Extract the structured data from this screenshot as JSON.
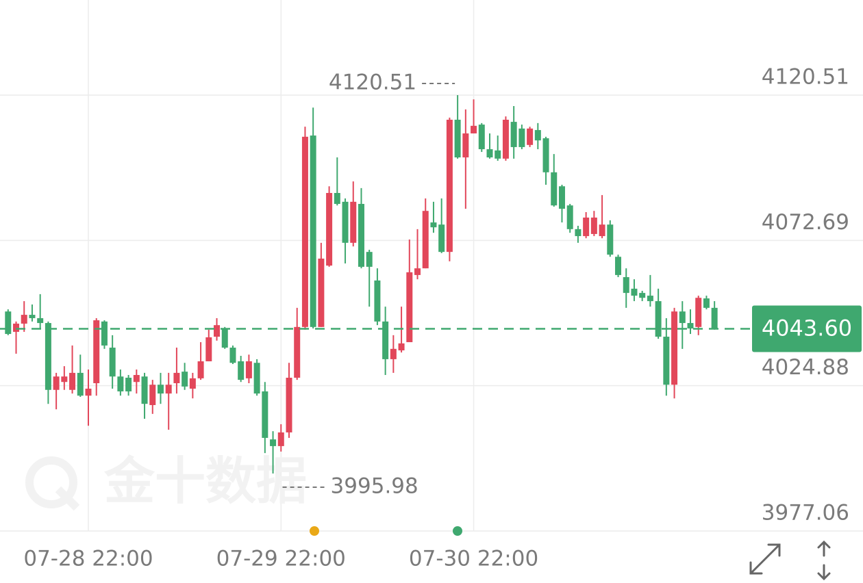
{
  "chart_data": {
    "type": "candlestick",
    "watermark": "金十数据",
    "categories": [
      null,
      null,
      null,
      null,
      null,
      null,
      null,
      null,
      null,
      null,
      "07-28 22:00",
      null,
      null,
      null,
      null,
      null,
      null,
      null,
      null,
      null,
      null,
      null,
      null,
      null,
      null,
      null,
      null,
      null,
      null,
      null,
      null,
      null,
      null,
      null,
      "07-29 22:00",
      null,
      null,
      null,
      null,
      null,
      null,
      null,
      null,
      null,
      null,
      null,
      null,
      null,
      null,
      null,
      null,
      null,
      null,
      null,
      null,
      null,
      null,
      null,
      "07-30 22:00",
      null,
      null,
      null,
      null,
      null,
      null,
      null,
      null,
      null,
      null,
      null,
      null,
      null,
      null,
      null,
      null,
      null,
      null,
      null,
      null,
      null,
      null,
      null,
      null,
      null,
      null,
      null,
      null,
      null,
      null
    ],
    "open": [
      4049.3,
      4042.6,
      4045.3,
      4048.2,
      4047.1,
      4045.5,
      4023.5,
      4026.1,
      4023.5,
      4029.1,
      4021.6,
      4025.7,
      4046.0,
      4037.4,
      4027.9,
      4027.5,
      4026.1,
      4027.9,
      4018.5,
      4025.2,
      4022.3,
      4025.7,
      4029.5,
      4023.9,
      4027.3,
      4032.9,
      4041.0,
      4043.7,
      4037.4,
      4032.9,
      4027.3,
      4032.4,
      4023.0,
      4007.2,
      4005.0,
      4009.5,
      4027.5,
      4044.2,
      4107.2,
      4044.2,
      4064.4,
      4088.3,
      4085.4,
      4071.9,
      4084.7,
      4068.9,
      4059.5,
      4046.0,
      4033.6,
      4036.5,
      4039.2,
      4061.3,
      4063.5,
      4078.6,
      4077.9,
      4068.9,
      4112.4,
      4100.0,
      4107.9,
      4110.8,
      4102.7,
      4102.3,
      4099.6,
      4111.7,
      4109.5,
      4104.1,
      4109.0,
      4106.3,
      4095.1,
      4090.5,
      4084.2,
      4076.4,
      4074.1,
      4074.8,
      4074.1,
      4077.9,
      4067.3,
      4060.6,
      4056.8,
      4055.4,
      4054.5,
      4052.7,
      4041.0,
      4025.2,
      4049.3,
      4045.5,
      4044.2,
      4053.6,
      4050.5
    ],
    "high": [
      4050.0,
      4046.0,
      4052.7,
      4051.6,
      4055.0,
      4046.0,
      4029.1,
      4031.3,
      4038.1,
      4035.1,
      4030.2,
      4047.1,
      4046.4,
      4041.5,
      4030.2,
      4028.4,
      4030.2,
      4029.1,
      4026.8,
      4029.1,
      4029.1,
      4037.4,
      4032.4,
      4029.1,
      4039.2,
      4043.3,
      4047.1,
      4044.2,
      4038.1,
      4034.7,
      4035.1,
      4033.6,
      4026.1,
      4009.9,
      4012.2,
      4032.4,
      4050.5,
      4110.1,
      4116.4,
      4071.9,
      4090.5,
      4100.0,
      4086.5,
      4092.1,
      4089.9,
      4069.6,
      4063.5,
      4050.9,
      4041.5,
      4050.9,
      4073.0,
      4076.4,
      4086.5,
      4085.4,
      4086.5,
      4113.1,
      4120.51,
      4115.8,
      4119.1,
      4111.3,
      4107.9,
      4107.2,
      4113.5,
      4116.9,
      4110.8,
      4110.1,
      4111.3,
      4106.8,
      4101.1,
      4091.0,
      4084.7,
      4077.5,
      4082.0,
      4082.4,
      4087.6,
      4079.3,
      4068.0,
      4063.5,
      4059.9,
      4056.1,
      4061.3,
      4056.8,
      4047.1,
      4050.5,
      4052.7,
      4050.0,
      4054.5,
      4054.5,
      4052.7
    ],
    "low": [
      4041.5,
      4035.4,
      4042.6,
      4046.0,
      4043.7,
      4018.9,
      4017.1,
      4023.5,
      4022.3,
      4021.2,
      4011.7,
      4021.6,
      4037.0,
      4023.9,
      4021.6,
      4021.6,
      4022.3,
      4014.0,
      4015.6,
      4018.9,
      4010.4,
      4022.3,
      4023.5,
      4020.7,
      4026.8,
      4032.9,
      4039.7,
      4037.0,
      4032.0,
      4026.1,
      4025.7,
      4021.6,
      4002.7,
      3995.98,
      4003.2,
      4007.7,
      4026.8,
      4043.3,
      4043.7,
      4044.2,
      4064.0,
      4084.2,
      4065.1,
      4070.7,
      4063.5,
      4050.9,
      4044.8,
      4028.4,
      4029.1,
      4035.8,
      4039.2,
      4059.9,
      4063.5,
      4075.2,
      4068.5,
      4065.8,
      4099.6,
      4083.1,
      4107.9,
      4101.8,
      4099.6,
      4098.9,
      4098.9,
      4099.6,
      4102.7,
      4103.4,
      4102.7,
      4091.0,
      4083.8,
      4078.6,
      4075.2,
      4071.9,
      4073.4,
      4074.1,
      4073.4,
      4067.3,
      4060.6,
      4050.5,
      4052.7,
      4052.7,
      4050.9,
      4040.3,
      4021.6,
      4020.7,
      4037.0,
      4041.9,
      4041.5,
      4050.0,
      4043.3
    ],
    "close": [
      4041.9,
      4045.3,
      4048.2,
      4047.1,
      4045.5,
      4023.5,
      4027.9,
      4027.9,
      4029.1,
      4021.6,
      4023.9,
      4046.4,
      4038.1,
      4027.9,
      4023.0,
      4023.0,
      4028.4,
      4018.9,
      4025.2,
      4022.3,
      4025.2,
      4029.1,
      4024.6,
      4027.3,
      4032.9,
      4040.8,
      4044.8,
      4037.4,
      4032.4,
      4026.8,
      4032.9,
      4022.3,
      4007.7,
      4005.0,
      4009.5,
      4027.5,
      4044.2,
      4106.8,
      4044.2,
      4066.7,
      4088.3,
      4084.7,
      4071.9,
      4085.4,
      4064.0,
      4064.0,
      4046.0,
      4033.6,
      4037.0,
      4038.8,
      4062.2,
      4063.5,
      4082.4,
      4077.0,
      4068.9,
      4112.4,
      4100.0,
      4107.9,
      4110.4,
      4102.7,
      4100.0,
      4099.6,
      4112.4,
      4103.4,
      4103.4,
      4109.5,
      4105.6,
      4095.1,
      4084.2,
      4083.1,
      4076.4,
      4074.1,
      4080.2,
      4080.2,
      4077.9,
      4068.0,
      4061.3,
      4055.4,
      4054.5,
      4053.8,
      4052.7,
      4041.0,
      4025.2,
      4049.3,
      4045.5,
      4043.7,
      4053.8,
      4050.5,
      4043.6
    ],
    "up_color": "#e2475a",
    "down_color": "#3fa86f",
    "ylim": [
      3977.06,
      4151.8
    ],
    "yticks": [
      3977.06,
      4024.88,
      4072.69,
      4120.51
    ],
    "grid": true,
    "last_price": {
      "value": 4043.6,
      "label": "4043.60"
    },
    "max_label": 4120.51,
    "min_label": 3995.98
  }
}
